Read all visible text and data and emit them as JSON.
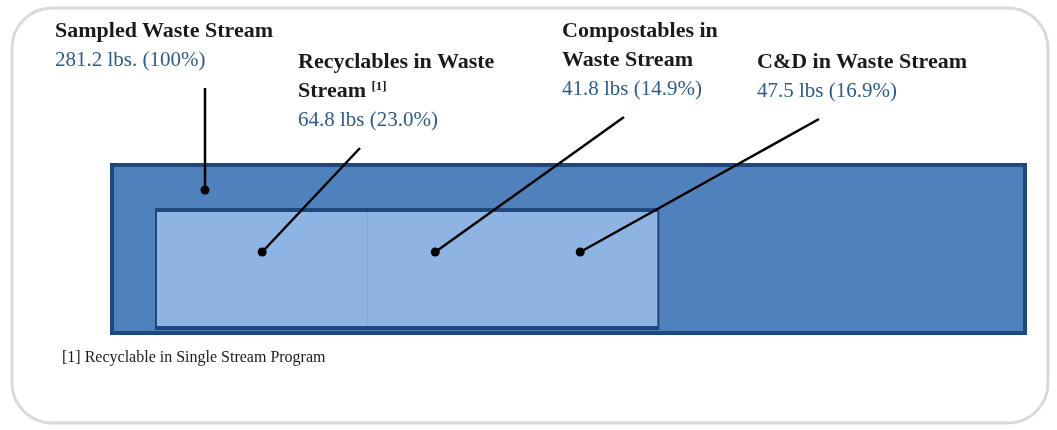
{
  "chart_data": {
    "type": "other",
    "categories": [
      "Sampled Waste Stream",
      "Recyclables in Waste Stream $^{[1]}$",
      "Compostables in Waste Stream",
      "C&D in Waste Stream"
    ],
    "values": [
      281.2,
      64.8,
      41.8,
      47.5
    ],
    "value_labels": [
      "281.2 lbs. (100%)",
      "64.8 lbs (23.0%)",
      "41.8 lbs (14.9%)",
      "47.5 lbs (16.9%)"
    ],
    "colors": [
      "#4f81bd",
      "#8eb4e3",
      "#8eb4e3",
      "#8eb4e3"
    ],
    "annotations": [
      "[1] Recyclable in Single Stream Program"
    ]
  }
}
